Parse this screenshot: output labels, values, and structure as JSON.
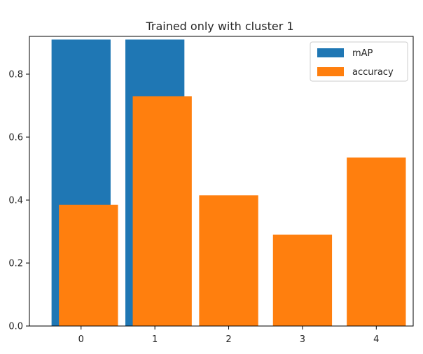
{
  "chart_data": {
    "type": "bar",
    "title": "Trained only with cluster 1",
    "xlabel": "",
    "ylabel": "",
    "categories": [
      "0",
      "1",
      "2",
      "3",
      "4"
    ],
    "y_ticks": [
      "0.0",
      "0.2",
      "0.4",
      "0.6",
      "0.8"
    ],
    "ylim": [
      0,
      0.92
    ],
    "grid": false,
    "legend_position": "top-right",
    "series": [
      {
        "name": "mAP",
        "color": "#1f77b4",
        "x": [
          0,
          1
        ],
        "values": [
          0.91,
          0.91
        ]
      },
      {
        "name": "accuracy",
        "color": "#ff7f0e",
        "x": [
          0.1,
          1.1,
          2,
          3,
          4
        ],
        "values": [
          0.385,
          0.73,
          0.415,
          0.29,
          0.535
        ]
      }
    ]
  }
}
